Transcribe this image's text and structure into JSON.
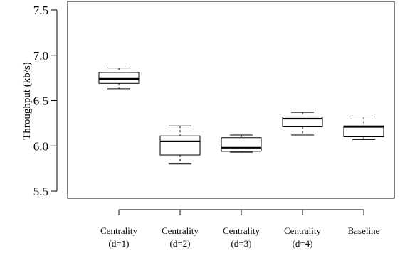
{
  "chart_data": {
    "type": "boxplot",
    "ylabel": "Throughput (kb/s)",
    "xlabel": "",
    "title": "",
    "ylim": [
      5.45,
      7.55
    ],
    "yticks": [
      5.5,
      6.0,
      6.5,
      7.0,
      7.5
    ],
    "ytick_labels": [
      "5.5",
      "6.0",
      "6.5",
      "7.0",
      "7.5"
    ],
    "grid": false,
    "categories": [
      {
        "line1": "Centrality",
        "line2": "(d=1)"
      },
      {
        "line1": "Centrality",
        "line2": "(d=2)"
      },
      {
        "line1": "Centrality",
        "line2": "(d=3)"
      },
      {
        "line1": "Centrality",
        "line2": "(d=4)"
      },
      {
        "line1": "Baseline",
        "line2": ""
      }
    ],
    "boxes": [
      {
        "whisker_low": 6.63,
        "q1": 6.69,
        "median": 6.74,
        "q3": 6.81,
        "whisker_high": 6.86
      },
      {
        "whisker_low": 5.8,
        "q1": 5.9,
        "median": 6.05,
        "q3": 6.11,
        "whisker_high": 6.22
      },
      {
        "whisker_low": 5.93,
        "q1": 5.94,
        "median": 5.98,
        "q3": 6.09,
        "whisker_high": 6.12
      },
      {
        "whisker_low": 6.12,
        "q1": 6.21,
        "median": 6.3,
        "q3": 6.32,
        "whisker_high": 6.37
      },
      {
        "whisker_low": 6.07,
        "q1": 6.1,
        "median": 6.21,
        "q3": 6.22,
        "whisker_high": 6.32
      }
    ]
  }
}
